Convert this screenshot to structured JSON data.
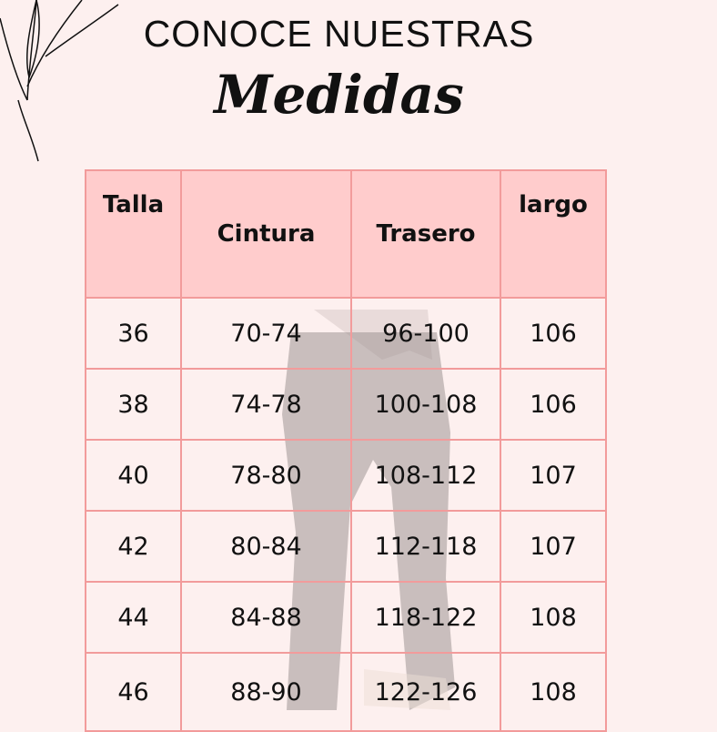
{
  "title_line1": "CONOCE NUESTRAS",
  "title_line2": "Medidas",
  "table": {
    "headers": [
      "Talla",
      "Cintura",
      "Trasero",
      "largo"
    ],
    "rows": [
      [
        "36",
        "70-74",
        "96-100",
        "106"
      ],
      [
        "38",
        "74-78",
        "100-108",
        "106"
      ],
      [
        "40",
        "78-80",
        "108-112",
        "107"
      ],
      [
        "42",
        "80-84",
        "112-118",
        "107"
      ],
      [
        "44",
        "84-88",
        "118-122",
        "108"
      ],
      [
        "46",
        "88-90",
        "122-126",
        "108"
      ]
    ]
  },
  "colors": {
    "background": "#fdf0ef",
    "header": "#ffc9c9",
    "border": "#f29b9b"
  }
}
